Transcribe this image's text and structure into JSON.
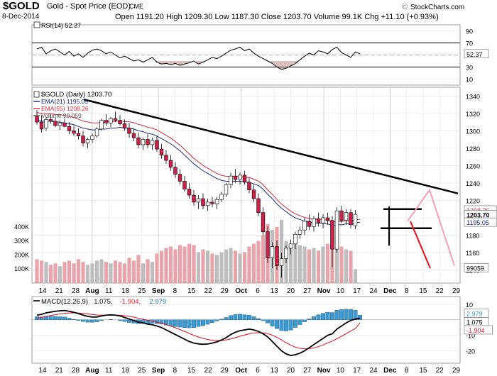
{
  "header": {
    "symbol": "$GOLD",
    "name": "Gold - Spot Price (EOD)",
    "exchange": "CME",
    "date": "8-Dec-2014",
    "ohlc_text": "Open 1191.20  High 1209.30  Low 1187.30  Close 1203.70  Volume 99.1K  Chg +11.10 (+0.93%)",
    "brand": "StockCharts.com",
    "brand_symbol": "©"
  },
  "colors": {
    "candle_up": "#ffffff",
    "candle_down": "#cc1f4a",
    "ema21": "#1a2a8c",
    "ema55": "#d42c3c",
    "volume_up": "#bdbdbd",
    "volume_down": "#e8a4ac",
    "trendline": "#000000",
    "projection_red": "#e0202a",
    "projection_pink": "#f2a0b6",
    "macd_line": "#000000",
    "signal_line": "#e0202a",
    "histogram": "#3d9ad1",
    "grid": "#e2e2e2"
  },
  "chart_data": [
    {
      "type": "line",
      "title": "RSI(14) 52.37",
      "legend": "RSI(14) 52.37",
      "last_value_label": "52.37",
      "ylim": [
        0,
        100
      ],
      "yticks": [
        10,
        30,
        50,
        70,
        90
      ],
      "overbought": 70,
      "oversold": 30,
      "values": [
        60,
        63,
        52,
        57,
        60,
        55,
        50,
        56,
        48,
        52,
        46,
        53,
        58,
        60,
        57,
        52,
        55,
        50,
        45,
        48,
        44,
        40,
        42,
        38,
        42,
        46,
        38,
        35,
        36,
        34,
        36,
        33,
        35,
        37,
        40,
        35,
        38,
        42,
        46,
        44,
        48,
        53,
        58,
        60,
        63,
        57,
        60,
        53,
        48,
        44,
        40,
        36,
        30,
        26,
        28,
        32,
        36,
        42,
        48,
        53,
        50,
        57,
        55,
        52,
        59,
        63,
        54,
        50,
        46,
        55,
        52
      ]
    },
    {
      "type": "candlestick",
      "title": "$GOLD (Daily) 1203.70",
      "legend": [
        {
          "label": "$GOLD (Daily) 1203.70",
          "series": "price"
        },
        {
          "label": "EMA(21) 1195.05",
          "series": "ema21"
        },
        {
          "label": "EMA(55) 1208.26",
          "series": "ema55"
        },
        {
          "label": "Volume 99,059",
          "series": "volume"
        }
      ],
      "ylim": [
        1125,
        1350
      ],
      "yticks": [
        1140,
        1160,
        1180,
        1200,
        1220,
        1240,
        1260,
        1280,
        1300,
        1320,
        1340
      ],
      "volume_ticks": [
        {
          "label": "100K",
          "value": 100000
        },
        {
          "label": "200K",
          "value": 200000
        },
        {
          "label": "300K",
          "value": 300000
        },
        {
          "label": "400K",
          "value": 400000
        }
      ],
      "volume_max": 500000,
      "last_labels": {
        "close": "1203.70",
        "ema21": "1195.05",
        "ema55": "1208.26",
        "volume": "99059"
      },
      "x_ticks": [
        {
          "label": "14",
          "month": false
        },
        {
          "label": "21",
          "month": false
        },
        {
          "label": "28",
          "month": false
        },
        {
          "label": "Aug",
          "month": true
        },
        {
          "label": "11",
          "month": false
        },
        {
          "label": "18",
          "month": false
        },
        {
          "label": "25",
          "month": false
        },
        {
          "label": "Sep",
          "month": true
        },
        {
          "label": "8",
          "month": false
        },
        {
          "label": "15",
          "month": false
        },
        {
          "label": "22",
          "month": false
        },
        {
          "label": "29",
          "month": false
        },
        {
          "label": "Oct",
          "month": true
        },
        {
          "label": "6",
          "month": false
        },
        {
          "label": "13",
          "month": false
        },
        {
          "label": "20",
          "month": false
        },
        {
          "label": "27",
          "month": false
        },
        {
          "label": "Nov",
          "month": true
        },
        {
          "label": "10",
          "month": false
        },
        {
          "label": "17",
          "month": false
        },
        {
          "label": "24",
          "month": false
        },
        {
          "label": "Dec",
          "month": true
        },
        {
          "label": "8",
          "month": false
        },
        {
          "label": "15",
          "month": false
        },
        {
          "label": "22",
          "month": false
        },
        {
          "label": "29",
          "month": false
        }
      ],
      "candles": [
        {
          "o": 1317,
          "h": 1324,
          "l": 1307,
          "c": 1310,
          "v": 170000
        },
        {
          "o": 1310,
          "h": 1318,
          "l": 1298,
          "c": 1302,
          "v": 160000
        },
        {
          "o": 1303,
          "h": 1316,
          "l": 1300,
          "c": 1313,
          "v": 150000
        },
        {
          "o": 1313,
          "h": 1319,
          "l": 1308,
          "c": 1311,
          "v": 130000
        },
        {
          "o": 1311,
          "h": 1316,
          "l": 1304,
          "c": 1306,
          "v": 140000
        },
        {
          "o": 1306,
          "h": 1312,
          "l": 1301,
          "c": 1309,
          "v": 120000
        },
        {
          "o": 1309,
          "h": 1314,
          "l": 1304,
          "c": 1305,
          "v": 150000
        },
        {
          "o": 1305,
          "h": 1310,
          "l": 1296,
          "c": 1300,
          "v": 160000
        },
        {
          "o": 1300,
          "h": 1306,
          "l": 1294,
          "c": 1297,
          "v": 140000
        },
        {
          "o": 1297,
          "h": 1303,
          "l": 1290,
          "c": 1294,
          "v": 170000
        },
        {
          "o": 1294,
          "h": 1300,
          "l": 1282,
          "c": 1286,
          "v": 150000
        },
        {
          "o": 1286,
          "h": 1292,
          "l": 1280,
          "c": 1290,
          "v": 130000
        },
        {
          "o": 1290,
          "h": 1297,
          "l": 1286,
          "c": 1294,
          "v": 140000
        },
        {
          "o": 1294,
          "h": 1304,
          "l": 1292,
          "c": 1302,
          "v": 160000
        },
        {
          "o": 1302,
          "h": 1314,
          "l": 1300,
          "c": 1312,
          "v": 170000
        },
        {
          "o": 1312,
          "h": 1319,
          "l": 1306,
          "c": 1309,
          "v": 150000
        },
        {
          "o": 1309,
          "h": 1316,
          "l": 1304,
          "c": 1314,
          "v": 140000
        },
        {
          "o": 1314,
          "h": 1322,
          "l": 1310,
          "c": 1312,
          "v": 160000
        },
        {
          "o": 1312,
          "h": 1318,
          "l": 1306,
          "c": 1308,
          "v": 150000
        },
        {
          "o": 1308,
          "h": 1313,
          "l": 1300,
          "c": 1303,
          "v": 140000
        },
        {
          "o": 1303,
          "h": 1309,
          "l": 1292,
          "c": 1297,
          "v": 180000
        },
        {
          "o": 1297,
          "h": 1302,
          "l": 1288,
          "c": 1292,
          "v": 160000
        },
        {
          "o": 1292,
          "h": 1298,
          "l": 1280,
          "c": 1284,
          "v": 200000
        },
        {
          "o": 1284,
          "h": 1292,
          "l": 1278,
          "c": 1290,
          "v": 140000
        },
        {
          "o": 1290,
          "h": 1296,
          "l": 1280,
          "c": 1284,
          "v": 170000
        },
        {
          "o": 1284,
          "h": 1292,
          "l": 1278,
          "c": 1289,
          "v": 150000
        },
        {
          "o": 1289,
          "h": 1294,
          "l": 1276,
          "c": 1279,
          "v": 210000
        },
        {
          "o": 1279,
          "h": 1285,
          "l": 1268,
          "c": 1272,
          "v": 230000
        },
        {
          "o": 1272,
          "h": 1278,
          "l": 1262,
          "c": 1266,
          "v": 250000
        },
        {
          "o": 1266,
          "h": 1272,
          "l": 1254,
          "c": 1258,
          "v": 260000
        },
        {
          "o": 1258,
          "h": 1264,
          "l": 1246,
          "c": 1250,
          "v": 240000
        },
        {
          "o": 1250,
          "h": 1256,
          "l": 1238,
          "c": 1242,
          "v": 270000
        },
        {
          "o": 1242,
          "h": 1248,
          "l": 1230,
          "c": 1233,
          "v": 260000
        },
        {
          "o": 1233,
          "h": 1240,
          "l": 1222,
          "c": 1226,
          "v": 280000
        },
        {
          "o": 1226,
          "h": 1232,
          "l": 1214,
          "c": 1218,
          "v": 270000
        },
        {
          "o": 1218,
          "h": 1226,
          "l": 1210,
          "c": 1222,
          "v": 220000
        },
        {
          "o": 1222,
          "h": 1228,
          "l": 1210,
          "c": 1214,
          "v": 240000
        },
        {
          "o": 1214,
          "h": 1222,
          "l": 1208,
          "c": 1218,
          "v": 230000
        },
        {
          "o": 1218,
          "h": 1224,
          "l": 1212,
          "c": 1216,
          "v": 210000
        },
        {
          "o": 1216,
          "h": 1224,
          "l": 1210,
          "c": 1221,
          "v": 200000
        },
        {
          "o": 1221,
          "h": 1230,
          "l": 1218,
          "c": 1227,
          "v": 220000
        },
        {
          "o": 1227,
          "h": 1240,
          "l": 1224,
          "c": 1238,
          "v": 240000
        },
        {
          "o": 1238,
          "h": 1252,
          "l": 1234,
          "c": 1248,
          "v": 250000
        },
        {
          "o": 1248,
          "h": 1256,
          "l": 1240,
          "c": 1244,
          "v": 230000
        },
        {
          "o": 1244,
          "h": 1252,
          "l": 1238,
          "c": 1249,
          "v": 210000
        },
        {
          "o": 1249,
          "h": 1254,
          "l": 1238,
          "c": 1241,
          "v": 220000
        },
        {
          "o": 1241,
          "h": 1246,
          "l": 1228,
          "c": 1232,
          "v": 260000
        },
        {
          "o": 1232,
          "h": 1238,
          "l": 1218,
          "c": 1222,
          "v": 280000
        },
        {
          "o": 1222,
          "h": 1228,
          "l": 1202,
          "c": 1206,
          "v": 300000
        },
        {
          "o": 1206,
          "h": 1212,
          "l": 1180,
          "c": 1184,
          "v": 340000
        },
        {
          "o": 1184,
          "h": 1190,
          "l": 1148,
          "c": 1154,
          "v": 420000
        },
        {
          "o": 1154,
          "h": 1172,
          "l": 1142,
          "c": 1167,
          "v": 380000
        },
        {
          "o": 1167,
          "h": 1174,
          "l": 1140,
          "c": 1145,
          "v": 400000
        },
        {
          "o": 1145,
          "h": 1160,
          "l": 1131,
          "c": 1153,
          "v": 450000
        },
        {
          "o": 1153,
          "h": 1168,
          "l": 1148,
          "c": 1165,
          "v": 300000
        },
        {
          "o": 1165,
          "h": 1175,
          "l": 1158,
          "c": 1170,
          "v": 280000
        },
        {
          "o": 1170,
          "h": 1184,
          "l": 1164,
          "c": 1181,
          "v": 290000
        },
        {
          "o": 1181,
          "h": 1190,
          "l": 1176,
          "c": 1186,
          "v": 270000
        },
        {
          "o": 1186,
          "h": 1200,
          "l": 1180,
          "c": 1196,
          "v": 260000
        },
        {
          "o": 1196,
          "h": 1204,
          "l": 1186,
          "c": 1190,
          "v": 240000
        },
        {
          "o": 1190,
          "h": 1202,
          "l": 1184,
          "c": 1199,
          "v": 250000
        },
        {
          "o": 1199,
          "h": 1206,
          "l": 1190,
          "c": 1194,
          "v": 230000
        },
        {
          "o": 1194,
          "h": 1204,
          "l": 1188,
          "c": 1200,
          "v": 260000
        },
        {
          "o": 1200,
          "h": 1206,
          "l": 1192,
          "c": 1197,
          "v": 280000
        },
        {
          "o": 1197,
          "h": 1202,
          "l": 1143,
          "c": 1164,
          "v": 380000
        },
        {
          "o": 1164,
          "h": 1212,
          "l": 1160,
          "c": 1208,
          "v": 360000
        },
        {
          "o": 1208,
          "h": 1214,
          "l": 1194,
          "c": 1197,
          "v": 260000
        },
        {
          "o": 1197,
          "h": 1210,
          "l": 1192,
          "c": 1206,
          "v": 240000
        },
        {
          "o": 1206,
          "h": 1210,
          "l": 1188,
          "c": 1192,
          "v": 230000
        },
        {
          "o": 1191,
          "h": 1209,
          "l": 1187,
          "c": 1204,
          "v": 99059
        }
      ],
      "ema21": [
        1312,
        1311,
        1311,
        1311,
        1310,
        1310,
        1309,
        1308,
        1307,
        1305,
        1303,
        1302,
        1301,
        1301,
        1302,
        1302,
        1303,
        1303,
        1304,
        1303,
        1303,
        1302,
        1300,
        1299,
        1297,
        1296,
        1294,
        1291,
        1288,
        1285,
        1281,
        1277,
        1272,
        1267,
        1262,
        1258,
        1254,
        1251,
        1248,
        1245,
        1243,
        1242,
        1242,
        1242,
        1242,
        1241,
        1241,
        1239,
        1237,
        1233,
        1227,
        1222,
        1216,
        1211,
        1207,
        1203,
        1200,
        1198,
        1196,
        1195,
        1194,
        1194,
        1194,
        1193,
        1191,
        1192,
        1192,
        1193,
        1193,
        1194,
        1195
      ]
    },
    {
      "type": "line",
      "title": "MACD(12,26,9) 1.075, -1.904, 2.979",
      "legend": [
        {
          "label": "MACD(12,26,9)",
          "series": "macd"
        },
        {
          "label": "1.075,",
          "series": "macd"
        },
        {
          "label": "-1.904,",
          "series": "signal"
        },
        {
          "label": "2.979",
          "series": "histogram"
        }
      ],
      "ylim": [
        -28,
        15
      ],
      "yticks": [
        -20,
        -10,
        0,
        10
      ],
      "last_labels": {
        "macd": "1.075",
        "signal": "-1.904",
        "histogram": "2.979"
      },
      "macd": [
        3,
        3.5,
        4.5,
        5,
        5.5,
        5.8,
        6,
        5.5,
        4.8,
        4,
        3,
        2.2,
        1.8,
        1.8,
        2.5,
        3,
        3.2,
        3,
        2.5,
        1.5,
        0.5,
        -0.5,
        -1.5,
        -2,
        -2.8,
        -3.2,
        -4,
        -5,
        -6.5,
        -8,
        -9.5,
        -11,
        -12.5,
        -14,
        -15,
        -15.5,
        -15.8,
        -15.6,
        -15,
        -14.2,
        -13,
        -11.5,
        -9.5,
        -8,
        -7,
        -6.5,
        -6,
        -6.5,
        -7.5,
        -9,
        -11,
        -14,
        -17,
        -20,
        -22,
        -23,
        -22.5,
        -21.5,
        -20,
        -18,
        -16,
        -14,
        -12,
        -10,
        -9,
        -6,
        -4,
        -2,
        -0.5,
        0.5,
        1.075
      ],
      "signal": [
        1,
        1.6,
        2.2,
        2.8,
        3.3,
        3.8,
        4.2,
        4.4,
        4.5,
        4.4,
        4.1,
        3.8,
        3.4,
        3.1,
        3,
        3,
        3,
        3,
        2.9,
        2.6,
        2.2,
        1.7,
        1,
        0.4,
        -0.3,
        -0.9,
        -1.5,
        -2.2,
        -3.1,
        -4.1,
        -5.1,
        -6.3,
        -7.5,
        -8.8,
        -10,
        -11.1,
        -12,
        -12.7,
        -13.2,
        -13.4,
        -13.4,
        -13,
        -12.3,
        -11.5,
        -10.6,
        -9.8,
        -9,
        -8.5,
        -8.3,
        -8.4,
        -8.9,
        -9.9,
        -11.3,
        -13,
        -14.8,
        -16.4,
        -17.6,
        -18.4,
        -18.7,
        -18.6,
        -18.1,
        -17.3,
        -16.2,
        -14.9,
        -13.7,
        -12.2,
        -10.6,
        -8.9,
        -7.2,
        -5.7,
        -1.904
      ],
      "histogram": [
        2,
        1.9,
        2.3,
        2.2,
        2.2,
        2,
        1.8,
        1.1,
        0.3,
        -0.4,
        -1.1,
        -1.6,
        -1.6,
        -1.3,
        -0.5,
        0,
        0.2,
        0,
        -0.4,
        -1.1,
        -1.7,
        -2.2,
        -2.5,
        -2.4,
        -2.5,
        -2.3,
        -2.5,
        -2.8,
        -3.4,
        -3.9,
        -4.4,
        -4.7,
        -5,
        -5.2,
        -5,
        -4.4,
        -3.8,
        -2.9,
        -1.8,
        -0.8,
        0.4,
        1.5,
        2.8,
        3.5,
        3.6,
        3.3,
        3,
        2,
        0.8,
        -0.6,
        -2.1,
        -4.1,
        -5.7,
        -7,
        -7.2,
        -6.6,
        -4.9,
        -3.1,
        -1.3,
        0.6,
        2.1,
        3.3,
        4.2,
        4.9,
        4.7,
        6.2,
        6.6,
        6.9,
        6.7,
        6.2,
        2.979
      ]
    }
  ]
}
